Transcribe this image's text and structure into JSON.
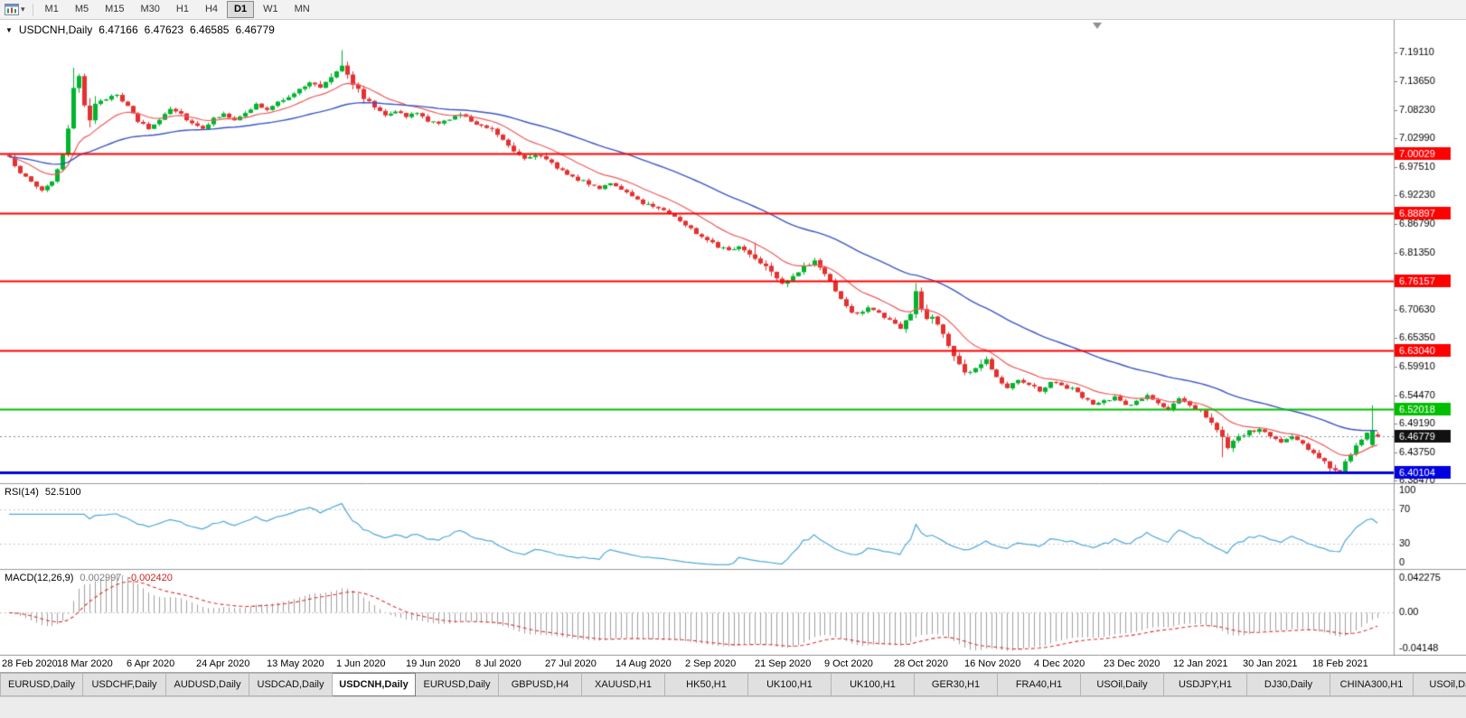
{
  "icons": {
    "symbol_dropdown": "▼",
    "toolbar_caret": "▾"
  },
  "toolbar": {
    "timeframes": [
      "M1",
      "M5",
      "M15",
      "M30",
      "H1",
      "H4",
      "D1",
      "W1",
      "MN"
    ],
    "active": "D1"
  },
  "chart": {
    "symbol_period": "USDCNH,Daily",
    "ohlc": {
      "open": "6.47166",
      "high": "6.47623",
      "low": "6.46585",
      "close": "6.46779"
    }
  },
  "rsi": {
    "label": "RSI(14)",
    "value": "52.5100"
  },
  "macd": {
    "label": "MACD(12,26,9)",
    "value_main": "0.002997",
    "value_signal": "-0.002420"
  },
  "tabs": {
    "active_index": 4,
    "items": [
      "EURUSD,Daily",
      "USDCHF,Daily",
      "AUDUSD,Daily",
      "USDCAD,Daily",
      "USDCNH,Daily",
      "EURUSD,Daily",
      "GBPUSD,H4",
      "XAUUSD,H1",
      "HK50,H1",
      "UK100,H1",
      "UK100,H1",
      "GER30,H1",
      "FRA40,H1",
      "USOil,Daily",
      "USDJPY,H1",
      "DJ30,Daily",
      "CHINA300,H1",
      "USOil,Daily"
    ]
  },
  "chart_data": {
    "type": "candlestick",
    "symbol": "USDCNH",
    "timeframe": "Daily",
    "title": "USDCNH,Daily",
    "current_bar": {
      "open": 6.47166,
      "high": 6.47623,
      "low": 6.46585,
      "close": 6.46779
    },
    "bars_visible": 256,
    "y_range": [
      6.38,
      7.253
    ],
    "y_axis_ticks": [
      "7.19110",
      "7.13650",
      "7.08230",
      "7.02990",
      "6.97510",
      "6.92230",
      "6.86790",
      "6.81350",
      "6.70630",
      "6.65350",
      "6.59910",
      "6.54470",
      "6.49190",
      "6.43750",
      "6.38470"
    ],
    "x_ticks": [
      "28 Feb 2020",
      "18 Mar 2020",
      "6 Apr 2020",
      "24 Apr 2020",
      "13 May 2020",
      "1 Jun 2020",
      "19 Jun 2020",
      "8 Jul 2020",
      "27 Jul 2020",
      "14 Aug 2020",
      "2 Sep 2020",
      "21 Sep 2020",
      "9 Oct 2020",
      "28 Oct 2020",
      "16 Nov 2020",
      "4 Dec 2020",
      "23 Dec 2020",
      "12 Jan 2021",
      "30 Jan 2021",
      "18 Feb 2021"
    ],
    "horizontal_lines": [
      {
        "price": 7.00029,
        "label": "7.00029",
        "color": "#FF0000",
        "line_width": 2
      },
      {
        "price": 6.88897,
        "label": "6.88897",
        "color": "#FF0000",
        "line_width": 2
      },
      {
        "price": 6.76157,
        "label": "6.76157",
        "color": "#FF0000",
        "line_width": 2
      },
      {
        "price": 6.6304,
        "label": "6.63040",
        "color": "#FF0000",
        "line_width": 2
      },
      {
        "price": 6.52018,
        "label": "6.52018",
        "color": "#00BE00",
        "line_width": 2
      },
      {
        "price": 6.40104,
        "label": "6.40104",
        "color": "#0000E0",
        "line_width": 3
      }
    ],
    "current_price_marker": {
      "price": 6.46779,
      "label": "6.46779",
      "box_color": "#111111"
    },
    "series_colors": {
      "candle_up": "#00B42D",
      "candle_down": "#E53030",
      "ma_fast": "#EF5B5B",
      "ma_slow": "#3A56C5"
    },
    "close_path_anchors": [
      [
        0,
        6.992
      ],
      [
        3,
        6.955
      ],
      [
        6,
        6.932
      ],
      [
        8,
        6.95
      ],
      [
        10,
        6.992
      ],
      [
        11,
        7.045
      ],
      [
        12,
        7.118
      ],
      [
        13,
        7.15
      ],
      [
        14,
        7.098
      ],
      [
        15,
        7.068
      ],
      [
        16,
        7.09
      ],
      [
        18,
        7.105
      ],
      [
        20,
        7.115
      ],
      [
        22,
        7.088
      ],
      [
        24,
        7.062
      ],
      [
        26,
        7.048
      ],
      [
        28,
        7.065
      ],
      [
        30,
        7.088
      ],
      [
        32,
        7.076
      ],
      [
        34,
        7.058
      ],
      [
        36,
        7.05
      ],
      [
        38,
        7.066
      ],
      [
        40,
        7.079
      ],
      [
        42,
        7.062
      ],
      [
        44,
        7.076
      ],
      [
        46,
        7.094
      ],
      [
        48,
        7.082
      ],
      [
        50,
        7.097
      ],
      [
        52,
        7.11
      ],
      [
        54,
        7.121
      ],
      [
        56,
        7.134
      ],
      [
        58,
        7.127
      ],
      [
        60,
        7.147
      ],
      [
        62,
        7.17
      ],
      [
        63,
        7.153
      ],
      [
        64,
        7.133
      ],
      [
        66,
        7.108
      ],
      [
        68,
        7.088
      ],
      [
        70,
        7.076
      ],
      [
        72,
        7.082
      ],
      [
        74,
        7.07
      ],
      [
        76,
        7.078
      ],
      [
        78,
        7.063
      ],
      [
        80,
        7.056
      ],
      [
        82,
        7.068
      ],
      [
        84,
        7.074
      ],
      [
        86,
        7.062
      ],
      [
        88,
        7.055
      ],
      [
        90,
        7.048
      ],
      [
        92,
        7.028
      ],
      [
        94,
        7.008
      ],
      [
        96,
        6.992
      ],
      [
        98,
        7.001
      ],
      [
        100,
        6.988
      ],
      [
        102,
        6.975
      ],
      [
        104,
        6.964
      ],
      [
        106,
        6.952
      ],
      [
        108,
        6.944
      ],
      [
        110,
        6.937
      ],
      [
        112,
        6.947
      ],
      [
        114,
        6.931
      ],
      [
        116,
        6.919
      ],
      [
        118,
        6.909
      ],
      [
        120,
        6.901
      ],
      [
        122,
        6.897
      ],
      [
        124,
        6.881
      ],
      [
        126,
        6.867
      ],
      [
        128,
        6.851
      ],
      [
        130,
        6.841
      ],
      [
        132,
        6.827
      ],
      [
        134,
        6.817
      ],
      [
        136,
        6.827
      ],
      [
        138,
        6.811
      ],
      [
        140,
        6.797
      ],
      [
        142,
        6.781
      ],
      [
        144,
        6.757
      ],
      [
        146,
        6.771
      ],
      [
        148,
        6.787
      ],
      [
        150,
        6.797
      ],
      [
        152,
        6.777
      ],
      [
        154,
        6.741
      ],
      [
        156,
        6.711
      ],
      [
        158,
        6.697
      ],
      [
        160,
        6.711
      ],
      [
        162,
        6.701
      ],
      [
        164,
        6.687
      ],
      [
        166,
        6.671
      ],
      [
        168,
        6.7
      ],
      [
        169,
        6.738
      ],
      [
        170,
        6.71
      ],
      [
        171,
        6.687
      ],
      [
        172,
        6.697
      ],
      [
        174,
        6.661
      ],
      [
        176,
        6.621
      ],
      [
        178,
        6.587
      ],
      [
        180,
        6.597
      ],
      [
        182,
        6.611
      ],
      [
        184,
        6.581
      ],
      [
        186,
        6.561
      ],
      [
        188,
        6.577
      ],
      [
        190,
        6.567
      ],
      [
        192,
        6.554
      ],
      [
        194,
        6.571
      ],
      [
        196,
        6.564
      ],
      [
        198,
        6.557
      ],
      [
        200,
        6.544
      ],
      [
        202,
        6.527
      ],
      [
        204,
        6.534
      ],
      [
        206,
        6.541
      ],
      [
        208,
        6.527
      ],
      [
        210,
        6.534
      ],
      [
        212,
        6.545
      ],
      [
        214,
        6.529
      ],
      [
        216,
        6.519
      ],
      [
        218,
        6.537
      ],
      [
        220,
        6.527
      ],
      [
        222,
        6.517
      ],
      [
        224,
        6.497
      ],
      [
        226,
        6.464
      ],
      [
        227,
        6.444
      ],
      [
        229,
        6.467
      ],
      [
        231,
        6.477
      ],
      [
        233,
        6.481
      ],
      [
        235,
        6.469
      ],
      [
        237,
        6.456
      ],
      [
        239,
        6.468
      ],
      [
        241,
        6.452
      ],
      [
        243,
        6.438
      ],
      [
        245,
        6.42
      ],
      [
        246,
        6.41
      ],
      [
        247,
        6.404
      ],
      [
        248,
        6.405
      ],
      [
        249,
        6.418
      ],
      [
        250,
        6.432
      ],
      [
        251,
        6.448
      ],
      [
        252,
        6.462
      ],
      [
        253,
        6.475
      ],
      [
        254,
        6.479
      ],
      [
        255,
        6.468
      ]
    ],
    "indicators": {
      "rsi": {
        "label": "RSI(14)",
        "current_value": 52.51,
        "scale_labels": [
          "100",
          "70",
          "30",
          "0"
        ],
        "line_color": "#4FA8DC"
      },
      "macd": {
        "label": "MACD(12,26,9)",
        "main_value": 0.002997,
        "signal_value": -0.00242,
        "scale_labels": [
          "0.042275",
          "0.00",
          "-0.04148"
        ],
        "histogram_color": "#A0A0A0",
        "signal_color": "#E03030"
      }
    }
  }
}
